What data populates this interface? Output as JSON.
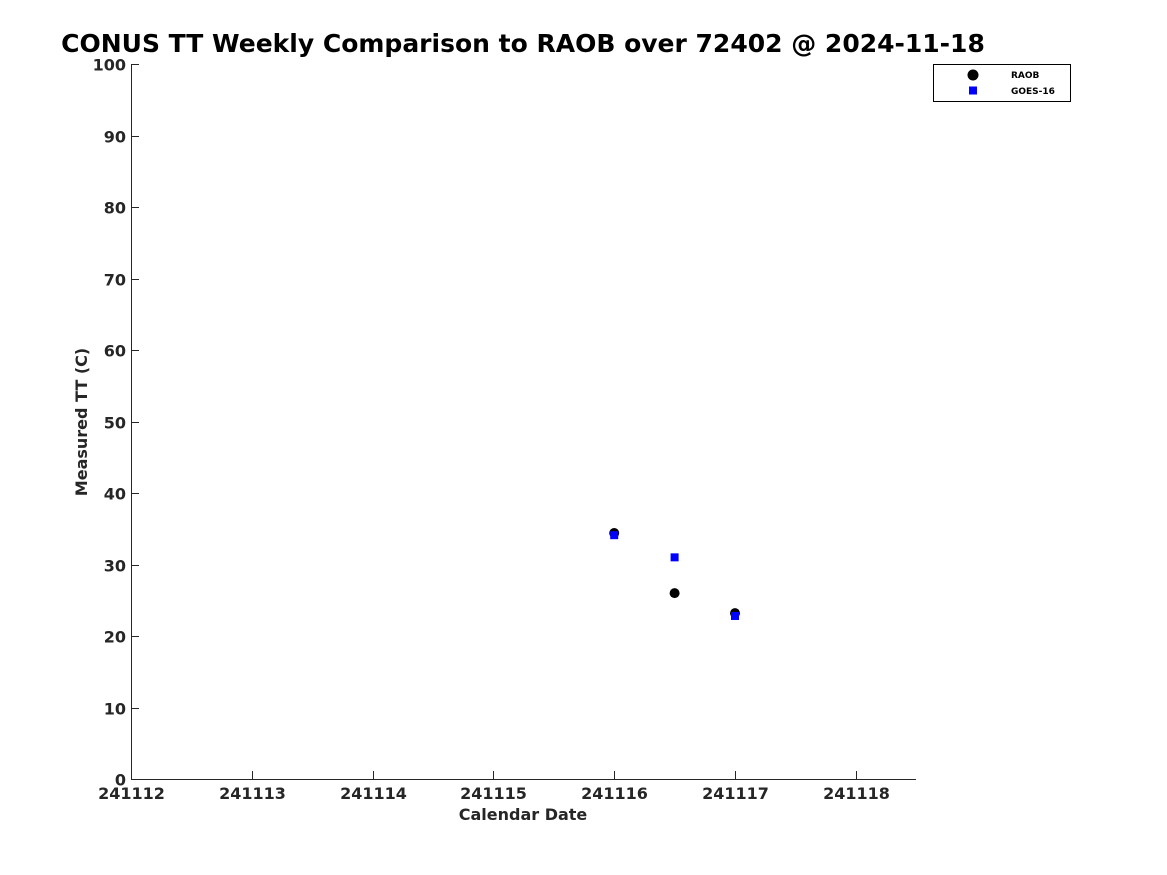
{
  "chart_data": {
    "type": "scatter",
    "title": "CONUS TT Weekly Comparison to RAOB over 72402 @ 2024-11-18",
    "xlabel": "Calendar Date",
    "ylabel": "Measured TT (C)",
    "xlim": [
      241112,
      241118.5
    ],
    "ylim": [
      0,
      100
    ],
    "xticks": [
      241112,
      241113,
      241114,
      241115,
      241116,
      241117,
      241118
    ],
    "xtick_labels": [
      "241112",
      "241113",
      "241114",
      "241115",
      "241116",
      "241117",
      "241118"
    ],
    "yticks": [
      0,
      10,
      20,
      30,
      40,
      50,
      60,
      70,
      80,
      90,
      100
    ],
    "ytick_labels": [
      "0",
      "10",
      "20",
      "30",
      "40",
      "50",
      "60",
      "70",
      "80",
      "90",
      "100"
    ],
    "grid": false,
    "legend_position": "top-right",
    "series": [
      {
        "name": "RAOB",
        "marker": "circle",
        "color": "#000000",
        "x": [
          241116,
          241116.5,
          241117
        ],
        "y": [
          34.4,
          26.0,
          23.2
        ]
      },
      {
        "name": "GOES-16",
        "marker": "square",
        "color": "#0000ff",
        "x": [
          241116,
          241116.5,
          241117
        ],
        "y": [
          34.1,
          31.0,
          22.8
        ]
      }
    ]
  }
}
